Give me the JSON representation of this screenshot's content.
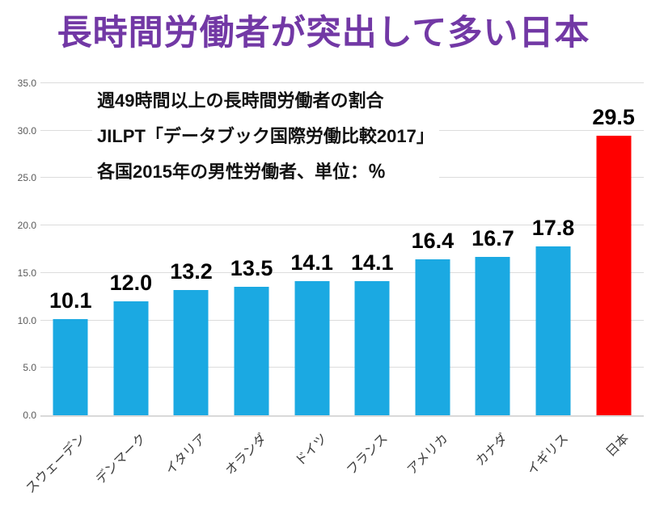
{
  "title": "長時間労働者が突出して多い日本",
  "annotation": {
    "line1": "週49時間以上の長時間労働者の割合",
    "line2": "JILPT「データブック国際労働比較2017」",
    "line3": "各国2015年の男性労働者、単位：％"
  },
  "colors": {
    "title": "#7238A5",
    "bar": "#1BA9E2",
    "bar_highlight": "#FF0000",
    "gridline": "#DCDCDC",
    "axis_tick_label": "#595959",
    "category_label": "#3D3D3D",
    "value_label": "#000000",
    "background": "#FFFFFF"
  },
  "chart_data": {
    "type": "bar",
    "title": "長時間労働者が突出して多い日本",
    "categories": [
      "スウェーデン",
      "デンマーク",
      "イタリア",
      "オランダ",
      "ドイツ",
      "フランス",
      "アメリカ",
      "カナダ",
      "イギリス",
      "日本"
    ],
    "values": [
      10.1,
      12.0,
      13.2,
      13.5,
      14.1,
      14.1,
      16.4,
      16.7,
      17.8,
      29.5
    ],
    "value_labels": [
      "10.1",
      "12.0",
      "13.2",
      "13.5",
      "14.1",
      "14.1",
      "16.4",
      "16.7",
      "17.8",
      "29.5"
    ],
    "highlight_index": 9,
    "xlabel": "",
    "ylabel": "",
    "ylim": [
      0,
      35
    ],
    "ytick_step": 5,
    "ytick_labels": [
      "0.0",
      "5.0",
      "10.0",
      "15.0",
      "20.0",
      "25.0",
      "30.0",
      "35.0"
    ],
    "grid": true,
    "legend": false
  }
}
